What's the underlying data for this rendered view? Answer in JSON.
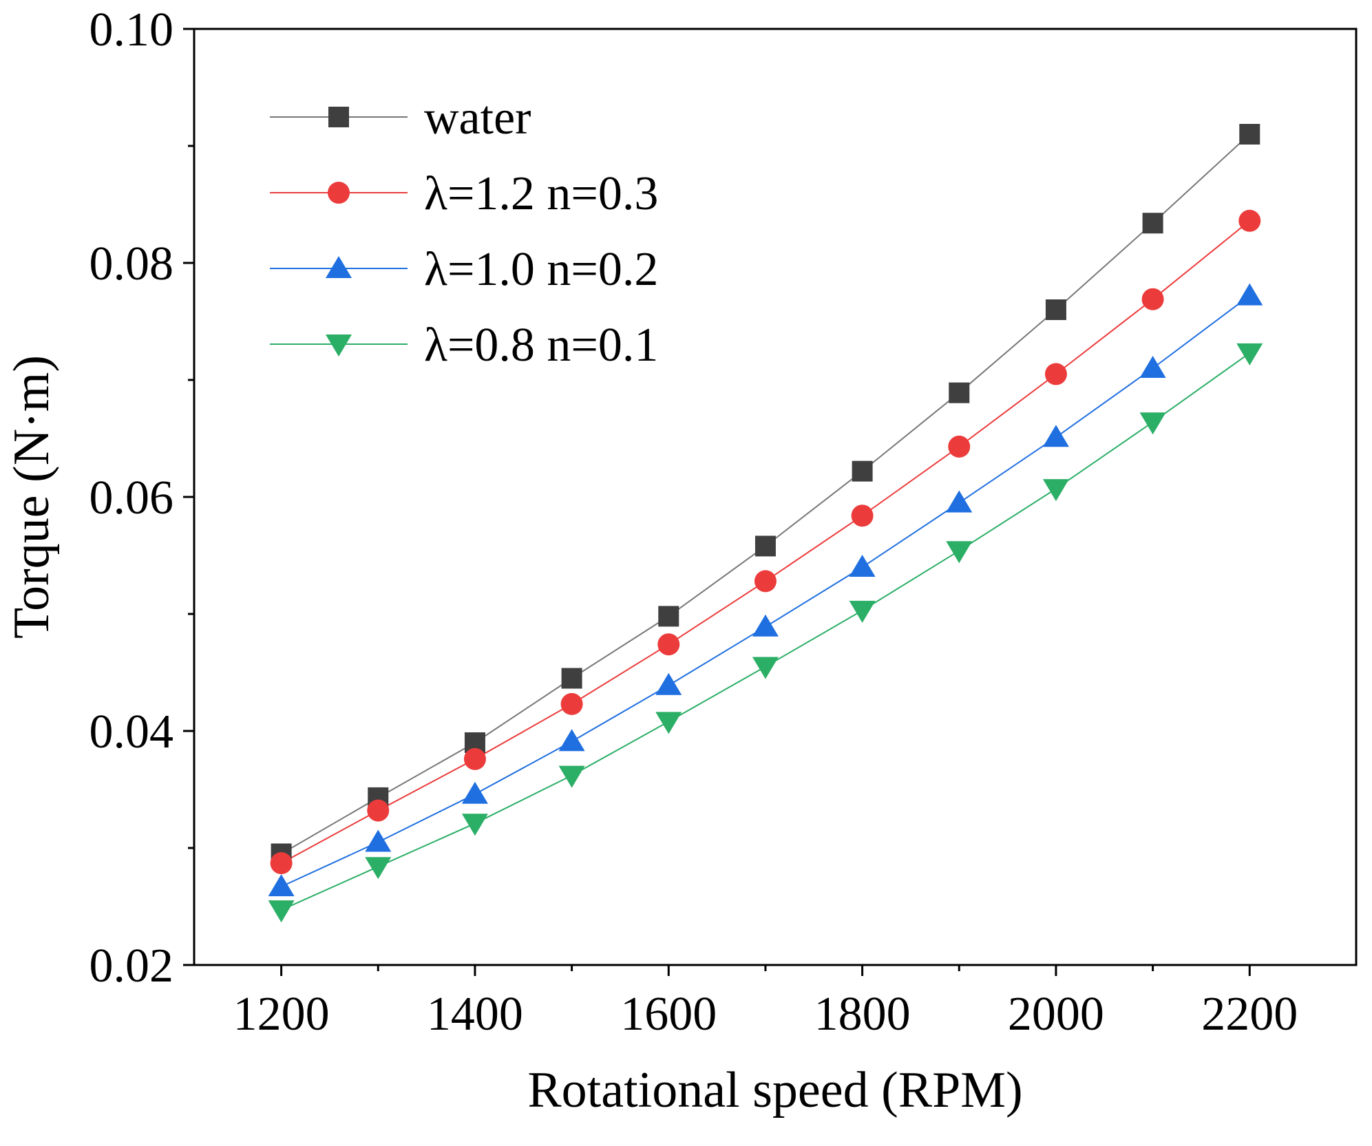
{
  "chart_data": {
    "type": "line",
    "title": "",
    "xlabel": "Rotational speed (RPM)",
    "ylabel": "Torque (N·m)",
    "xlim": [
      1110,
      2310
    ],
    "ylim": [
      0.02,
      0.1
    ],
    "x_ticks": [
      1200,
      1400,
      1600,
      1800,
      2000,
      2200
    ],
    "x_tick_labels": [
      "1200",
      "1400",
      "1600",
      "1800",
      "2000",
      "2200"
    ],
    "y_ticks": [
      0.02,
      0.04,
      0.06,
      0.08,
      0.1
    ],
    "y_tick_labels": [
      "0.02",
      "0.04",
      "0.06",
      "0.08",
      "0.10"
    ],
    "y_minor_ticks": [
      0.03,
      0.05,
      0.07,
      0.09
    ],
    "grid": false,
    "legend_position": "top-left",
    "x": [
      1200,
      1300,
      1400,
      1500,
      1600,
      1700,
      1800,
      1900,
      2000,
      2100,
      2200
    ],
    "series": [
      {
        "name": "water",
        "marker": "square",
        "color": "#3f3f3f",
        "line_color": "#777777",
        "values": [
          0.0295,
          0.0343,
          0.039,
          0.0445,
          0.0498,
          0.0558,
          0.0622,
          0.0689,
          0.076,
          0.0834,
          0.091
        ]
      },
      {
        "name": "λ=1.2 n=0.3",
        "marker": "circle",
        "color": "#ec3b3b",
        "line_color": "#ec3b3b",
        "values": [
          0.0287,
          0.0332,
          0.0376,
          0.0423,
          0.0474,
          0.0528,
          0.0584,
          0.0643,
          0.0705,
          0.0769,
          0.0836
        ]
      },
      {
        "name": "λ=1.0 n=0.2",
        "marker": "triangle-up",
        "color": "#1f6fe0",
        "line_color": "#1f6fe0",
        "values": [
          0.0267,
          0.0305,
          0.0346,
          0.0391,
          0.0439,
          0.0489,
          0.054,
          0.0595,
          0.0651,
          0.071,
          0.0772
        ]
      },
      {
        "name": "λ=0.8 n=0.1",
        "marker": "triangle-down",
        "color": "#2bae66",
        "line_color": "#2bae66",
        "values": [
          0.0247,
          0.0284,
          0.0321,
          0.0362,
          0.0408,
          0.0455,
          0.0503,
          0.0554,
          0.0607,
          0.0664,
          0.0723
        ]
      }
    ]
  }
}
